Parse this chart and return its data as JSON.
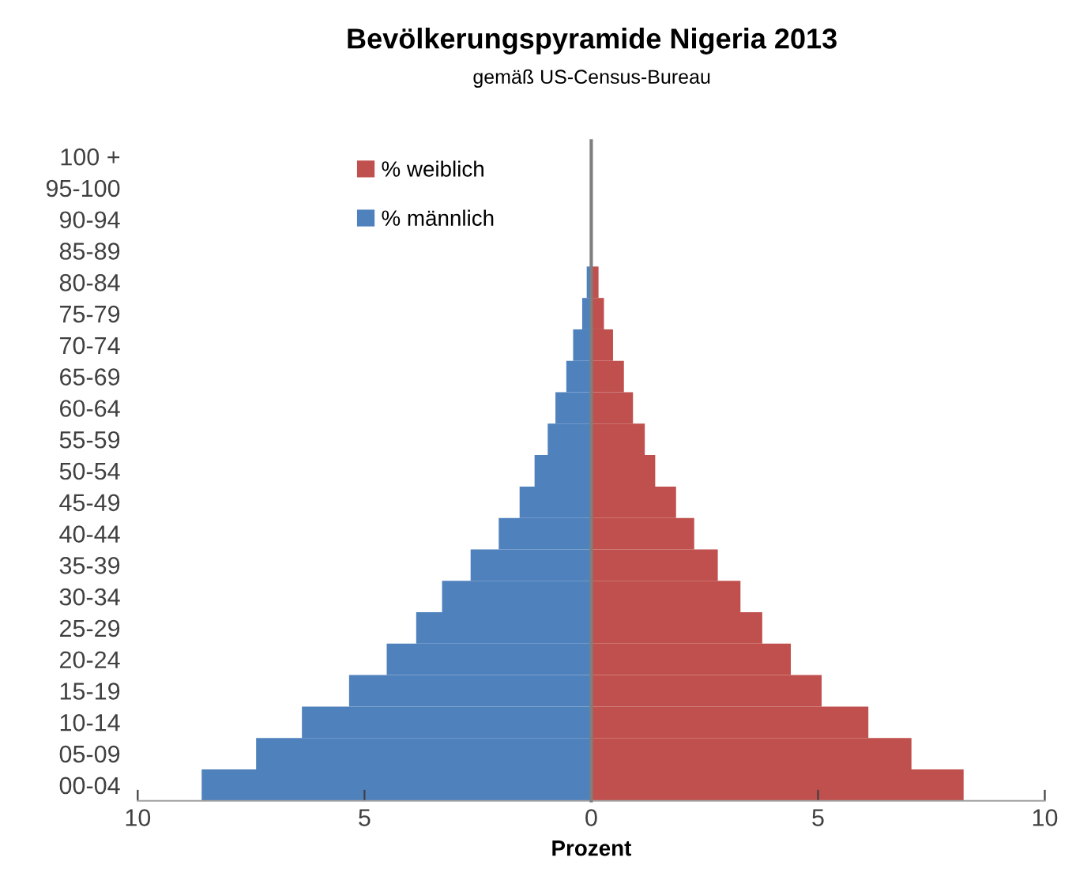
{
  "chart_data": {
    "type": "bar",
    "orientation": "horizontal",
    "title": "Bevölkerungspyramide Nigeria 2013",
    "subtitle": "gemäß US-Census-Bureau",
    "xlabel": "Prozent",
    "categories": [
      "100 +",
      "95-100",
      "90-94",
      "85-89",
      "80-84",
      "75-79",
      "70-74",
      "65-69",
      "60-64",
      "55-59",
      "50-54",
      "45-49",
      "40-44",
      "35-39",
      "30-34",
      "25-29",
      "20-24",
      "15-19",
      "10-14",
      "05-09",
      "00-04"
    ],
    "series": [
      {
        "name": "% weiblich",
        "color": "#c0504d",
        "values": [
          0,
          0,
          0,
          0,
          0.16,
          0.28,
          0.48,
          0.72,
          0.92,
          1.18,
          1.41,
          1.87,
          2.27,
          2.79,
          3.29,
          3.77,
          4.4,
          5.08,
          6.11,
          7.06,
          8.21
        ]
      },
      {
        "name": "% männlich",
        "color": "#4f81bd",
        "values": [
          0,
          0,
          0,
          0,
          -0.1,
          -0.2,
          -0.4,
          -0.55,
          -0.79,
          -0.96,
          -1.25,
          -1.58,
          -2.04,
          -2.66,
          -3.29,
          -3.86,
          -4.51,
          -5.34,
          -6.38,
          -7.39,
          -8.59
        ]
      }
    ],
    "xlim": [
      -10,
      10
    ],
    "xticks": [
      {
        "value": -10,
        "label": "10"
      },
      {
        "value": -5,
        "label": "5"
      },
      0,
      5,
      10
    ],
    "stacked": true,
    "legend": "top left"
  }
}
